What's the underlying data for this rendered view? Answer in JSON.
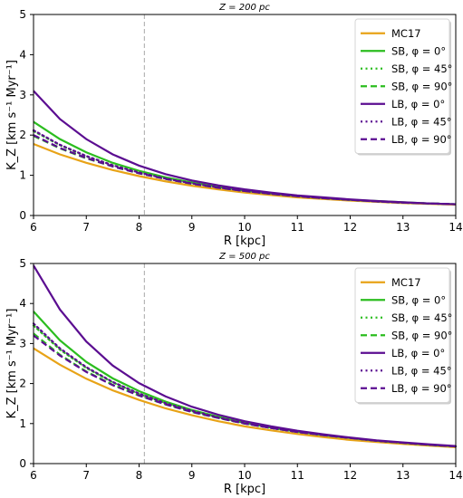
{
  "chart_data": [
    {
      "type": "line",
      "title": "Z = 200 pc",
      "xlabel": "R [kpc]",
      "ylabel": "K_Z [km s⁻¹ Myr⁻¹]",
      "xlim": [
        6,
        14
      ],
      "ylim": [
        0,
        5
      ],
      "xticks": [
        "6",
        "7",
        "8",
        "9",
        "10",
        "11",
        "12",
        "13",
        "14"
      ],
      "yticks": [
        "0",
        "1",
        "2",
        "3",
        "4",
        "5"
      ],
      "vline": 8.1,
      "legend_position": "top-right",
      "x": [
        6,
        6.5,
        7,
        7.5,
        8,
        8.5,
        9,
        9.5,
        10,
        10.5,
        11,
        11.5,
        12,
        12.5,
        13,
        13.5,
        14
      ],
      "series": [
        {
          "name": "MC17",
          "color": "#e8a317",
          "style": "solid",
          "values": [
            1.78,
            1.52,
            1.31,
            1.13,
            0.98,
            0.85,
            0.74,
            0.65,
            0.57,
            0.51,
            0.45,
            0.41,
            0.37,
            0.34,
            0.31,
            0.29,
            0.27
          ]
        },
        {
          "name": "SB, φ = 0°",
          "color": "#2bbd1f",
          "style": "solid",
          "values": [
            2.33,
            1.9,
            1.57,
            1.31,
            1.11,
            0.95,
            0.82,
            0.71,
            0.62,
            0.55,
            0.49,
            0.44,
            0.39,
            0.36,
            0.33,
            0.3,
            0.28
          ]
        },
        {
          "name": "SB, φ = 45°",
          "color": "#2bbd1f",
          "style": "dotted",
          "values": [
            2.1,
            1.75,
            1.47,
            1.25,
            1.07,
            0.92,
            0.8,
            0.7,
            0.61,
            0.54,
            0.48,
            0.43,
            0.39,
            0.35,
            0.32,
            0.3,
            0.28
          ]
        },
        {
          "name": "SB, φ = 90°",
          "color": "#2bbd1f",
          "style": "dashed",
          "values": [
            1.98,
            1.67,
            1.42,
            1.22,
            1.05,
            0.91,
            0.79,
            0.69,
            0.61,
            0.54,
            0.48,
            0.43,
            0.39,
            0.35,
            0.32,
            0.3,
            0.28
          ]
        },
        {
          "name": "LB, φ = 0°",
          "color": "#5b0d91",
          "style": "solid",
          "values": [
            3.1,
            2.4,
            1.9,
            1.52,
            1.24,
            1.03,
            0.87,
            0.75,
            0.65,
            0.57,
            0.5,
            0.45,
            0.4,
            0.36,
            0.33,
            0.3,
            0.28
          ]
        },
        {
          "name": "LB, φ = 45°",
          "color": "#5b0d91",
          "style": "dotted",
          "values": [
            2.12,
            1.76,
            1.48,
            1.25,
            1.07,
            0.92,
            0.8,
            0.7,
            0.61,
            0.54,
            0.48,
            0.43,
            0.39,
            0.35,
            0.32,
            0.3,
            0.28
          ]
        },
        {
          "name": "LB, φ = 90°",
          "color": "#5b0d91",
          "style": "dashed",
          "values": [
            2.0,
            1.68,
            1.43,
            1.22,
            1.05,
            0.91,
            0.79,
            0.69,
            0.61,
            0.54,
            0.48,
            0.43,
            0.39,
            0.35,
            0.32,
            0.3,
            0.28
          ]
        }
      ]
    },
    {
      "type": "line",
      "title": "Z = 500 pc",
      "xlabel": "R [kpc]",
      "ylabel": "K_Z [km s⁻¹ Myr⁻¹]",
      "xlim": [
        6,
        14
      ],
      "ylim": [
        0,
        5
      ],
      "xticks": [
        "6",
        "7",
        "8",
        "9",
        "10",
        "11",
        "12",
        "13",
        "14"
      ],
      "yticks": [
        "0",
        "1",
        "2",
        "3",
        "4",
        "5"
      ],
      "vline": 8.1,
      "legend_position": "top-right",
      "x": [
        6,
        6.5,
        7,
        7.5,
        8,
        8.5,
        9,
        9.5,
        10,
        10.5,
        11,
        11.5,
        12,
        12.5,
        13,
        13.5,
        14
      ],
      "series": [
        {
          "name": "MC17",
          "color": "#e8a317",
          "style": "solid",
          "values": [
            2.88,
            2.47,
            2.12,
            1.83,
            1.59,
            1.38,
            1.21,
            1.06,
            0.93,
            0.83,
            0.74,
            0.66,
            0.59,
            0.54,
            0.49,
            0.45,
            0.41
          ]
        },
        {
          "name": "SB, φ = 0°",
          "color": "#2bbd1f",
          "style": "solid",
          "values": [
            3.8,
            3.08,
            2.54,
            2.13,
            1.81,
            1.55,
            1.34,
            1.17,
            1.02,
            0.9,
            0.8,
            0.71,
            0.64,
            0.57,
            0.52,
            0.47,
            0.43
          ]
        },
        {
          "name": "SB, φ = 45°",
          "color": "#2bbd1f",
          "style": "dotted",
          "values": [
            3.45,
            2.85,
            2.39,
            2.03,
            1.74,
            1.51,
            1.31,
            1.15,
            1.01,
            0.89,
            0.79,
            0.71,
            0.64,
            0.57,
            0.52,
            0.47,
            0.43
          ]
        },
        {
          "name": "SB, φ = 90°",
          "color": "#2bbd1f",
          "style": "dashed",
          "values": [
            3.25,
            2.72,
            2.3,
            1.97,
            1.7,
            1.48,
            1.29,
            1.14,
            1.0,
            0.89,
            0.79,
            0.71,
            0.64,
            0.57,
            0.52,
            0.47,
            0.43
          ]
        },
        {
          "name": "LB, φ = 0°",
          "color": "#5b0d91",
          "style": "solid",
          "values": [
            4.95,
            3.85,
            3.05,
            2.45,
            2.01,
            1.68,
            1.42,
            1.22,
            1.06,
            0.93,
            0.82,
            0.73,
            0.65,
            0.58,
            0.53,
            0.48,
            0.44
          ]
        },
        {
          "name": "LB, φ = 45°",
          "color": "#5b0d91",
          "style": "dotted",
          "values": [
            3.5,
            2.88,
            2.41,
            2.04,
            1.75,
            1.51,
            1.32,
            1.15,
            1.01,
            0.89,
            0.79,
            0.71,
            0.64,
            0.57,
            0.52,
            0.47,
            0.43
          ]
        },
        {
          "name": "LB, φ = 90°",
          "color": "#5b0d91",
          "style": "dashed",
          "values": [
            3.2,
            2.7,
            2.29,
            1.96,
            1.7,
            1.48,
            1.29,
            1.14,
            1.0,
            0.89,
            0.79,
            0.71,
            0.64,
            0.57,
            0.52,
            0.47,
            0.43
          ]
        }
      ]
    }
  ]
}
